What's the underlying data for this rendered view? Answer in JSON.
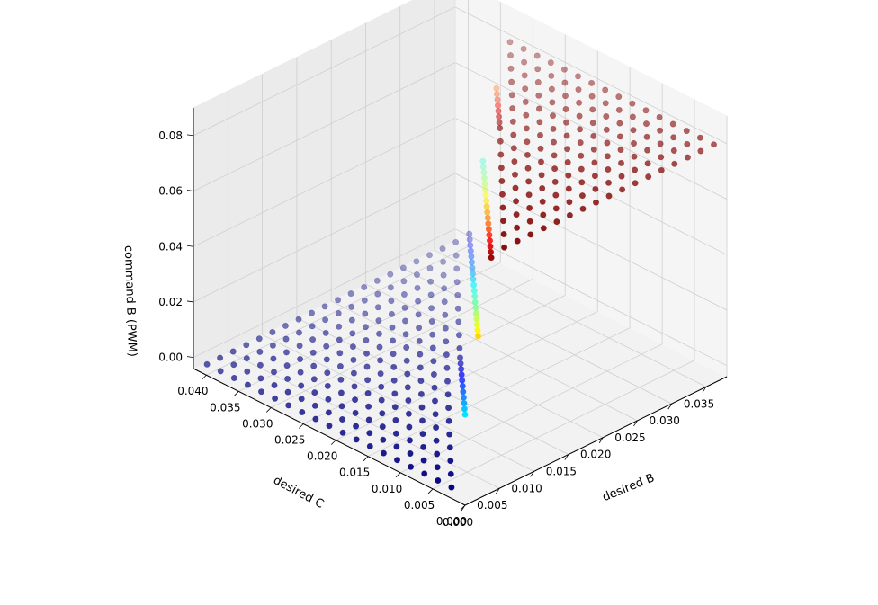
{
  "chart_data": {
    "type": "scatter",
    "projection": "3d",
    "title": "",
    "xlabel": "desired B",
    "ylabel": "desired C",
    "zlabel": "command B (PWM)",
    "xlim": [
      0,
      0.038
    ],
    "ylim": [
      0,
      0.042
    ],
    "zlim": [
      -0.004,
      0.09
    ],
    "x_ticks": [
      "0.000",
      "0.005",
      "0.010",
      "0.015",
      "0.020",
      "0.025",
      "0.030",
      "0.035"
    ],
    "y_ticks": [
      "0.000",
      "0.005",
      "0.010",
      "0.015",
      "0.020",
      "0.025",
      "0.030",
      "0.035",
      "0.040"
    ],
    "z_ticks": [
      "0.00",
      "0.02",
      "0.04",
      "0.06",
      "0.08"
    ],
    "colormap": "jet",
    "grid": true,
    "surface_model": {
      "description": "command B rises with desired B minus desired C and saturates",
      "grid_x": [
        0.0,
        0.0019,
        0.0038,
        0.0057,
        0.0076,
        0.0095,
        0.0114,
        0.0133,
        0.0152,
        0.0171,
        0.019,
        0.0209,
        0.0228,
        0.0247,
        0.0266,
        0.0285,
        0.0304,
        0.0323,
        0.0342,
        0.0361
      ],
      "grid_y": [
        0.0,
        0.0021,
        0.0042,
        0.0063,
        0.0084,
        0.0105,
        0.0126,
        0.0147,
        0.0168,
        0.0189,
        0.021,
        0.0231,
        0.0252,
        0.0273,
        0.0294,
        0.0315,
        0.0336,
        0.0357,
        0.0378,
        0.0399
      ],
      "saturation_value": 0.082,
      "ramp_width": 0.006
    }
  }
}
